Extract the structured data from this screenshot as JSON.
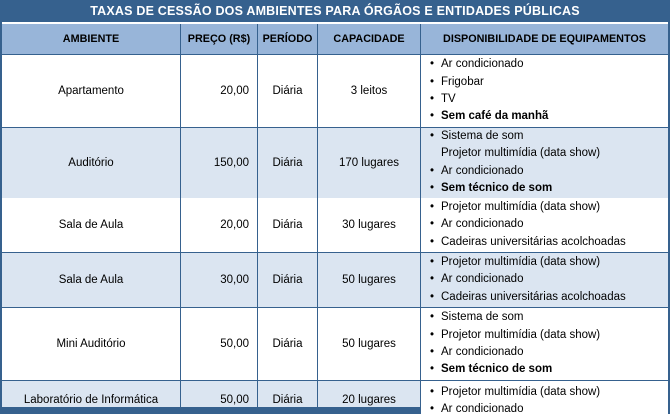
{
  "title": "TAXAS DE CESSÃO DOS AMBIENTES PARA ÓRGÃOS E ENTIDADES PÚBLICAS",
  "columns": [
    "AMBIENTE",
    "PREÇO (R$)",
    "PERÍODO",
    "CAPACIDADE",
    "DISPONIBILIDADE DE EQUIPAMENTOS"
  ],
  "rows": [
    {
      "ambiente": "Apartamento",
      "preco": "20,00",
      "periodo": "Diária",
      "capacidade": "3 leitos",
      "shade": false,
      "cut": false,
      "equipamentos": [
        {
          "text": "Ar condicionado",
          "bullet": true,
          "bold": false
        },
        {
          "text": "Frigobar",
          "bullet": true,
          "bold": false
        },
        {
          "text": "TV",
          "bullet": true,
          "bold": false
        },
        {
          "text": "Sem café da manhã",
          "bullet": true,
          "bold": true
        }
      ]
    },
    {
      "ambiente": "Auditório",
      "preco": "150,00",
      "periodo": "Diária",
      "capacidade": "170 lugares",
      "shade": true,
      "cut": false,
      "equipamentos": [
        {
          "text": "Sistema de som",
          "bullet": true,
          "bold": false
        },
        {
          "text": "Projetor multimídia (data show)",
          "bullet": false,
          "bold": false
        },
        {
          "text": "Ar condicionado",
          "bullet": true,
          "bold": false
        },
        {
          "text": "Sem técnico de som",
          "bullet": true,
          "bold": true
        }
      ]
    },
    {
      "ambiente": "Sala de Aula",
      "preco": "20,00",
      "periodo": "Diária",
      "capacidade": "30 lugares",
      "shade": false,
      "cut": false,
      "equipamentos": [
        {
          "text": "Projetor multimídia (data show)",
          "bullet": true,
          "bold": false
        },
        {
          "text": "Ar condicionado",
          "bullet": true,
          "bold": false
        },
        {
          "text": "Cadeiras universitárias acolchoadas",
          "bullet": true,
          "bold": false
        }
      ]
    },
    {
      "ambiente": "Sala de Aula",
      "preco": "30,00",
      "periodo": "Diária",
      "capacidade": "50 lugares",
      "shade": true,
      "cut": false,
      "equipamentos": [
        {
          "text": "Projetor multimídia (data show)",
          "bullet": true,
          "bold": false
        },
        {
          "text": "Ar condicionado",
          "bullet": true,
          "bold": false
        },
        {
          "text": "Cadeiras universitárias acolchoadas",
          "bullet": true,
          "bold": false
        }
      ]
    },
    {
      "ambiente": "Mini Auditório",
      "preco": "50,00",
      "periodo": "Diária",
      "capacidade": "50 lugares",
      "shade": false,
      "cut": false,
      "equipamentos": [
        {
          "text": "Sistema de som",
          "bullet": true,
          "bold": false
        },
        {
          "text": "Projetor multimídia (data show)",
          "bullet": true,
          "bold": false
        },
        {
          "text": "Ar condicionado",
          "bullet": true,
          "bold": false
        },
        {
          "text": "Sem técnico de som",
          "bullet": true,
          "bold": true
        }
      ]
    },
    {
      "ambiente": "Laboratório de Informática",
      "preco": "50,00",
      "periodo": "Diária",
      "capacidade": "20 lugares",
      "shade": true,
      "cut": true,
      "equipamentos": [
        {
          "text": "Projetor multimídia (data show)",
          "bullet": true,
          "bold": false
        },
        {
          "text": "Ar condicionado",
          "bullet": true,
          "bold": false
        }
      ]
    }
  ],
  "colors": {
    "title_bar_bg": "#36618E",
    "header_bg": "#98B5D9",
    "row_shade_bg": "#DBE5F1",
    "border": "#36618E",
    "title_text": "#FFFFFF",
    "body_text": "#000000"
  }
}
